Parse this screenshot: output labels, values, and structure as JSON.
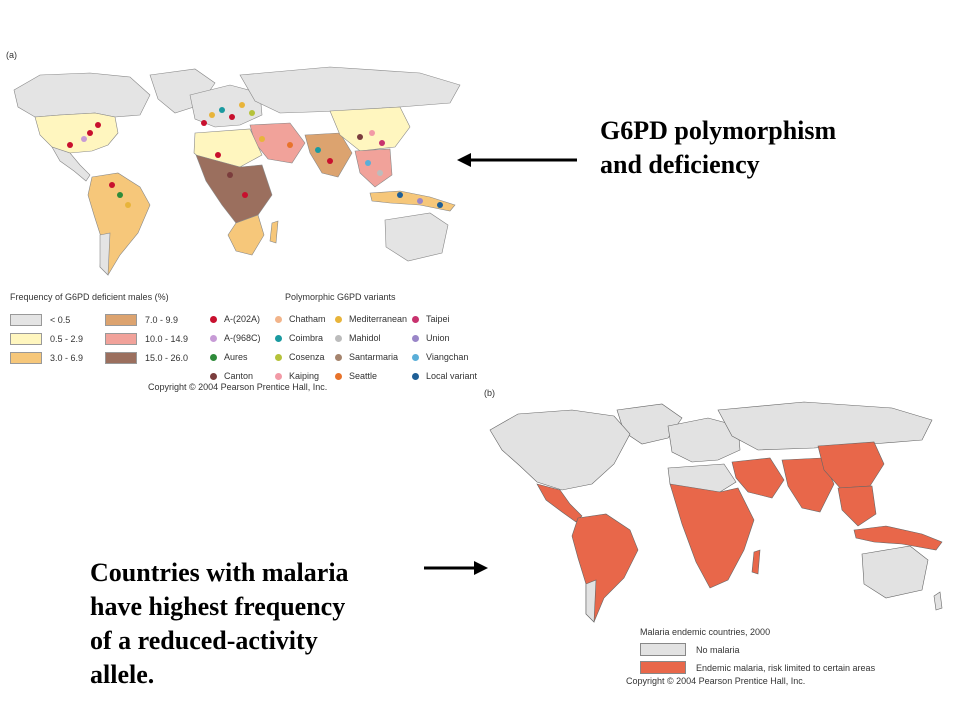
{
  "panel_a": {
    "label": "(a)",
    "legend_freq": {
      "title": "Frequency of G6PD deficient males (%)",
      "bins": [
        {
          "label": "< 0.5",
          "color": "#e4e4e4"
        },
        {
          "label": "0.5 - 2.9",
          "color": "#fff6bf"
        },
        {
          "label": "3.0 - 6.9",
          "color": "#f6c77a"
        },
        {
          "label": "7.0 - 9.9",
          "color": "#dca36f"
        },
        {
          "label": "10.0 - 14.9",
          "color": "#f1a29a"
        },
        {
          "label": "15.0 - 26.0",
          "color": "#9b6f5e"
        }
      ]
    },
    "legend_variants": {
      "title": "Polymorphic G6PD variants",
      "items": [
        {
          "label": "A-(202A)",
          "color": "#c8102e"
        },
        {
          "label": "A-(968C)",
          "color": "#c79bd6"
        },
        {
          "label": "Aures",
          "color": "#2e8b3a"
        },
        {
          "label": "Canton",
          "color": "#7b3d3d"
        },
        {
          "label": "Chatham",
          "color": "#f2b48a"
        },
        {
          "label": "Coimbra",
          "color": "#1a9aa0"
        },
        {
          "label": "Cosenza",
          "color": "#b5c23a"
        },
        {
          "label": "Kaiping",
          "color": "#f29aa6"
        },
        {
          "label": "Mediterranean",
          "color": "#e8b43a"
        },
        {
          "label": "Mahidol",
          "color": "#bcbcbc"
        },
        {
          "label": "Santarmaria",
          "color": "#a5846e"
        },
        {
          "label": "Seattle",
          "color": "#e8732a"
        },
        {
          "label": "Taipei",
          "color": "#c8326e"
        },
        {
          "label": "Union",
          "color": "#9a86c8"
        },
        {
          "label": "Viangchan",
          "color": "#5aaed8"
        },
        {
          "label": "Local variant",
          "color": "#1f5f96"
        }
      ]
    },
    "copyright": "Copyright © 2004 Pearson Prentice Hall, Inc."
  },
  "panel_b": {
    "label": "(b)",
    "legend_title": "Malaria endemic countries, 2000",
    "items": [
      {
        "label": "No malaria",
        "color": "#e2e2e2"
      },
      {
        "label": "Endemic malaria, risk limited to certain areas",
        "color": "#e8674a"
      }
    ],
    "copyright": "Copyright © 2004 Pearson Prentice Hall, Inc."
  },
  "callouts": {
    "top": {
      "line1": "G6PD polymorphism",
      "line2": "and deficiency"
    },
    "bottom": {
      "line1": "Countries with malaria",
      "line2": "have highest frequency",
      "line3": "of a reduced-activity",
      "line4": "allele."
    }
  }
}
